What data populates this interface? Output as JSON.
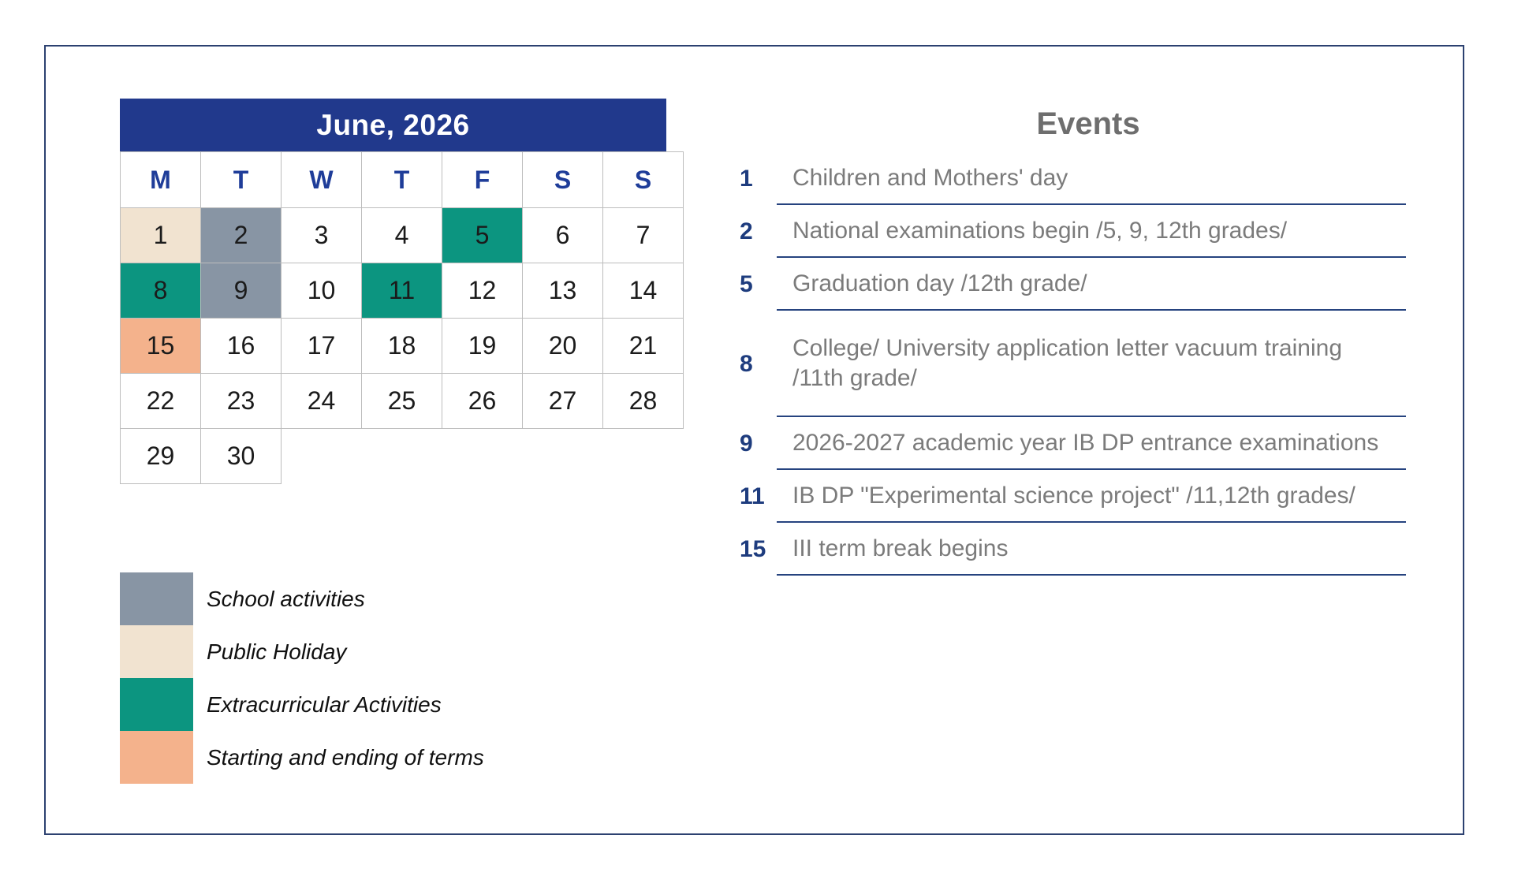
{
  "calendar": {
    "title": "June, 2026",
    "weekdays": [
      "M",
      "T",
      "W",
      "T",
      "F",
      "S",
      "S"
    ],
    "weeks": [
      [
        {
          "d": "1",
          "t": "public_holiday"
        },
        {
          "d": "2",
          "t": "school"
        },
        {
          "d": "3"
        },
        {
          "d": "4"
        },
        {
          "d": "5",
          "t": "extracurricular"
        },
        {
          "d": "6"
        },
        {
          "d": "7"
        }
      ],
      [
        {
          "d": "8",
          "t": "extracurricular"
        },
        {
          "d": "9",
          "t": "school"
        },
        {
          "d": "10"
        },
        {
          "d": "11",
          "t": "extracurricular"
        },
        {
          "d": "12"
        },
        {
          "d": "13"
        },
        {
          "d": "14"
        }
      ],
      [
        {
          "d": "15",
          "t": "terms"
        },
        {
          "d": "16"
        },
        {
          "d": "17"
        },
        {
          "d": "18"
        },
        {
          "d": "19"
        },
        {
          "d": "20"
        },
        {
          "d": "21"
        }
      ],
      [
        {
          "d": "22"
        },
        {
          "d": "23"
        },
        {
          "d": "24"
        },
        {
          "d": "25"
        },
        {
          "d": "26"
        },
        {
          "d": "27"
        },
        {
          "d": "28"
        }
      ],
      [
        {
          "d": "29"
        },
        {
          "d": "30"
        },
        null,
        null,
        null,
        null,
        null
      ]
    ]
  },
  "legend": {
    "items": [
      {
        "label": "School activities",
        "type": "school"
      },
      {
        "label": "Public Holiday",
        "type": "public_holiday"
      },
      {
        "label": "Extracurricular Activities",
        "type": "extracurricular"
      },
      {
        "label": "Starting and ending of terms",
        "type": "terms"
      }
    ]
  },
  "events": {
    "title": "Events",
    "items": [
      {
        "day": "1",
        "text": "Children and Mothers' day"
      },
      {
        "day": "2",
        "text": "National examinations begin /5, 9, 12th grades/"
      },
      {
        "day": "5",
        "text": "Graduation day /12th grade/"
      },
      {
        "day": "8",
        "text": "College/ University application letter vacuum training\n/11th grade/",
        "tall": true
      },
      {
        "day": "9",
        "text": "2026-2027 academic year IB DP entrance examinations"
      },
      {
        "day": "11",
        "text": "IB DP \"Experimental science project\" /11,12th grades/"
      },
      {
        "day": "15",
        "text": "III term break begins"
      }
    ]
  },
  "colors": {
    "header_blue": "#21398C",
    "weekday_blue": "#1F3D99",
    "school": "#8895A4",
    "public_holiday": "#F1E3D0",
    "extracurricular": "#0C9580",
    "terms": "#F4B28C",
    "event_number": "#1E3C7E",
    "event_text": "#7B7B7B",
    "events_title": "#6E6E6E",
    "separator": "#26437F",
    "grid_line": "#BDBDBD",
    "page_border": "#2C4170",
    "day_text": "#1B1B1B"
  }
}
